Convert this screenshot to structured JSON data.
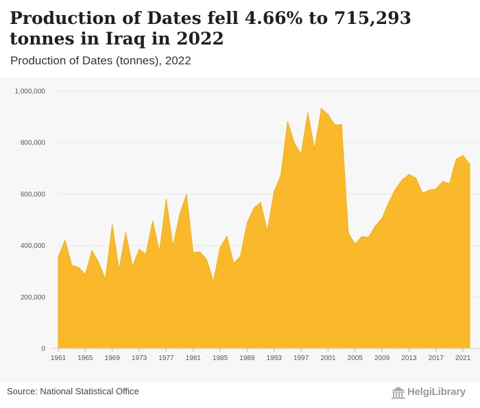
{
  "header": {
    "title": "Production of Dates fell 4.66% to 715,293 tonnes in Iraq in 2022",
    "subtitle": "Production of Dates (tonnes), 2022"
  },
  "footer": {
    "source": "Source: National Statistical Office",
    "logo_text": "HelgiLibrary",
    "logo_icon": "library-building-icon"
  },
  "colors": {
    "area_fill": "#F9B92B",
    "area_stroke": "#F3AE13",
    "plot_background": "#f7f7f7",
    "gridline": "#e6e6e6"
  },
  "chart_data": {
    "type": "area",
    "title": "Production of Dates fell 4.66% to 715,293 tonnes in Iraq in 2022",
    "subtitle": "Production of Dates (tonnes), 2022",
    "xlabel": "",
    "ylabel": "",
    "x": [
      1961,
      1962,
      1963,
      1964,
      1965,
      1966,
      1967,
      1968,
      1969,
      1970,
      1971,
      1972,
      1973,
      1974,
      1975,
      1976,
      1977,
      1978,
      1979,
      1980,
      1981,
      1982,
      1983,
      1984,
      1985,
      1986,
      1987,
      1988,
      1989,
      1990,
      1991,
      1992,
      1993,
      1994,
      1995,
      1996,
      1997,
      1998,
      1999,
      2000,
      2001,
      2002,
      2003,
      2004,
      2005,
      2006,
      2007,
      2008,
      2009,
      2010,
      2011,
      2012,
      2013,
      2014,
      2015,
      2016,
      2017,
      2018,
      2019,
      2020,
      2021,
      2022
    ],
    "series": [
      {
        "name": "",
        "values": [
          355000,
          420000,
          323000,
          315000,
          287000,
          380000,
          333000,
          268000,
          480000,
          305000,
          450000,
          318000,
          385000,
          366000,
          495000,
          375000,
          580000,
          396000,
          520000,
          598000,
          372000,
          375000,
          345000,
          260000,
          392000,
          435000,
          330000,
          357000,
          487000,
          545000,
          567000,
          455000,
          610000,
          672000,
          880000,
          798000,
          755000,
          915000,
          773000,
          932000,
          908000,
          868000,
          870000,
          448000,
          405000,
          434000,
          432000,
          476000,
          505000,
          567000,
          619000,
          655000,
          676000,
          662000,
          603000,
          615000,
          619000,
          648000,
          640000,
          735000,
          750000,
          715293
        ]
      }
    ],
    "xticks": [
      1961,
      1965,
      1969,
      1973,
      1977,
      1981,
      1985,
      1989,
      1993,
      1997,
      2001,
      2005,
      2009,
      2013,
      2017,
      2021
    ],
    "yticks": [
      0,
      200000,
      400000,
      600000,
      800000,
      1000000
    ],
    "ytick_labels": [
      "0",
      "200,000",
      "400,000",
      "600,000",
      "800,000",
      "1,000,000"
    ],
    "xlim": [
      1961,
      2022
    ],
    "ylim": [
      0,
      1000000
    ],
    "grid": true,
    "legend": "none"
  }
}
